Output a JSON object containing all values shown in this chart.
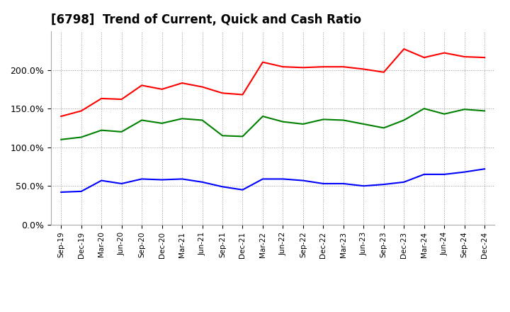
{
  "title": "[6798]  Trend of Current, Quick and Cash Ratio",
  "labels": [
    "Sep-19",
    "Dec-19",
    "Mar-20",
    "Jun-20",
    "Sep-20",
    "Dec-20",
    "Mar-21",
    "Jun-21",
    "Sep-21",
    "Dec-21",
    "Mar-22",
    "Jun-22",
    "Sep-22",
    "Dec-22",
    "Mar-23",
    "Jun-23",
    "Sep-23",
    "Dec-23",
    "Mar-24",
    "Jun-24",
    "Sep-24",
    "Dec-24"
  ],
  "current_ratio": [
    1.4,
    1.47,
    1.63,
    1.62,
    1.8,
    1.75,
    1.83,
    1.78,
    1.7,
    1.68,
    2.1,
    2.04,
    2.03,
    2.04,
    2.04,
    2.01,
    1.97,
    2.27,
    2.16,
    2.22,
    2.17,
    2.16
  ],
  "quick_ratio": [
    1.1,
    1.13,
    1.22,
    1.2,
    1.35,
    1.31,
    1.37,
    1.35,
    1.15,
    1.14,
    1.4,
    1.33,
    1.3,
    1.36,
    1.35,
    1.3,
    1.25,
    1.35,
    1.5,
    1.43,
    1.49,
    1.47
  ],
  "cash_ratio": [
    0.42,
    0.43,
    0.57,
    0.53,
    0.59,
    0.58,
    0.59,
    0.55,
    0.49,
    0.45,
    0.59,
    0.59,
    0.57,
    0.53,
    0.53,
    0.5,
    0.52,
    0.55,
    0.65,
    0.65,
    0.68,
    0.72
  ],
  "current_color": "#FF0000",
  "quick_color": "#008000",
  "cash_color": "#0000FF",
  "background_color": "#FFFFFF",
  "grid_color": "#AAAAAA",
  "ylim": [
    0.0,
    2.5
  ],
  "yticks": [
    0.0,
    0.5,
    1.0,
    1.5,
    2.0
  ],
  "ytick_labels": [
    "0.0%",
    "50.0%",
    "100.0%",
    "150.0%",
    "200.0%"
  ]
}
